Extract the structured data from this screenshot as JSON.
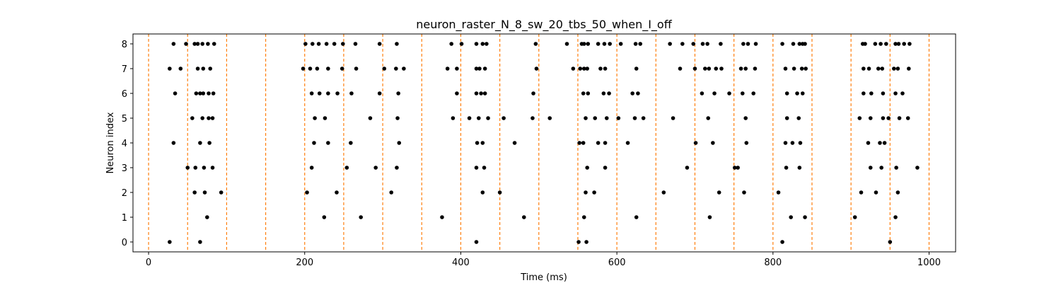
{
  "chart_data": {
    "type": "scatter",
    "title": "neuron_raster_N_8_sw_20_tbs_50_when_I_off",
    "xlabel": "Time (ms)",
    "ylabel": "Neuron index",
    "xlim": [
      -20,
      1034
    ],
    "ylim": [
      -0.4,
      8.4
    ],
    "xticks": [
      0,
      200,
      400,
      600,
      800,
      1000
    ],
    "yticks": [
      0,
      1,
      2,
      3,
      4,
      5,
      6,
      7,
      8
    ],
    "grid": false,
    "marker_color": "#000000",
    "vline_color": "#ff7f0e",
    "vlines": [
      0,
      50,
      100,
      150,
      200,
      250,
      300,
      350,
      400,
      450,
      500,
      550,
      600,
      650,
      700,
      750,
      800,
      850,
      900,
      950,
      1000
    ],
    "spikes": [
      {
        "neuron": 8,
        "times": [
          32,
          48,
          59,
          63,
          69,
          76,
          84,
          201,
          210,
          218,
          228,
          238,
          249,
          265,
          296,
          318,
          388,
          401,
          420,
          428,
          433,
          496,
          536,
          555,
          558,
          563,
          576,
          584,
          591,
          605,
          624,
          630,
          668,
          684,
          698,
          710,
          716,
          733,
          762,
          768,
          778,
          812,
          826,
          834,
          838,
          841,
          915,
          918,
          931,
          938,
          945,
          957,
          961,
          968,
          975
        ]
      },
      {
        "neuron": 7,
        "times": [
          27,
          41,
          63,
          70,
          79,
          198,
          207,
          216,
          230,
          248,
          266,
          302,
          317,
          327,
          383,
          395,
          420,
          424,
          431,
          497,
          544,
          553,
          558,
          562,
          579,
          585,
          625,
          681,
          700,
          713,
          718,
          727,
          734,
          759,
          765,
          777,
          816,
          827,
          837,
          842,
          916,
          923,
          935,
          940,
          955,
          960,
          974
        ]
      },
      {
        "neuron": 6,
        "times": [
          34,
          61,
          66,
          70,
          77,
          83,
          209,
          219,
          230,
          242,
          260,
          296,
          320,
          395,
          420,
          426,
          431,
          493,
          557,
          563,
          583,
          590,
          620,
          627,
          709,
          725,
          744,
          761,
          775,
          818,
          831,
          838,
          916,
          926,
          941,
          957,
          966
        ]
      },
      {
        "neuron": 5,
        "times": [
          56,
          69,
          77,
          82,
          213,
          226,
          284,
          319,
          390,
          411,
          423,
          435,
          455,
          492,
          514,
          560,
          572,
          587,
          602,
          623,
          634,
          672,
          717,
          765,
          818,
          833,
          911,
          925,
          941,
          948,
          962,
          973
        ]
      },
      {
        "neuron": 4,
        "times": [
          32,
          66,
          78,
          212,
          230,
          259,
          321,
          421,
          428,
          469,
          552,
          557,
          576,
          585,
          614,
          701,
          723,
          766,
          816,
          825,
          835,
          922,
          937,
          943
        ]
      },
      {
        "neuron": 3,
        "times": [
          50,
          60,
          71,
          82,
          209,
          254,
          291,
          318,
          420,
          430,
          562,
          585,
          690,
          751,
          755,
          817,
          834,
          925,
          939,
          958,
          985
        ]
      },
      {
        "neuron": 2,
        "times": [
          59,
          72,
          93,
          203,
          241,
          311,
          428,
          450,
          560,
          571,
          660,
          731,
          763,
          807,
          913,
          932,
          960
        ]
      },
      {
        "neuron": 1,
        "times": [
          75,
          225,
          272,
          376,
          481,
          558,
          625,
          719,
          823,
          841,
          905,
          957
        ]
      },
      {
        "neuron": 0,
        "times": [
          27,
          66,
          420,
          551,
          561,
          812,
          950
        ]
      }
    ]
  }
}
